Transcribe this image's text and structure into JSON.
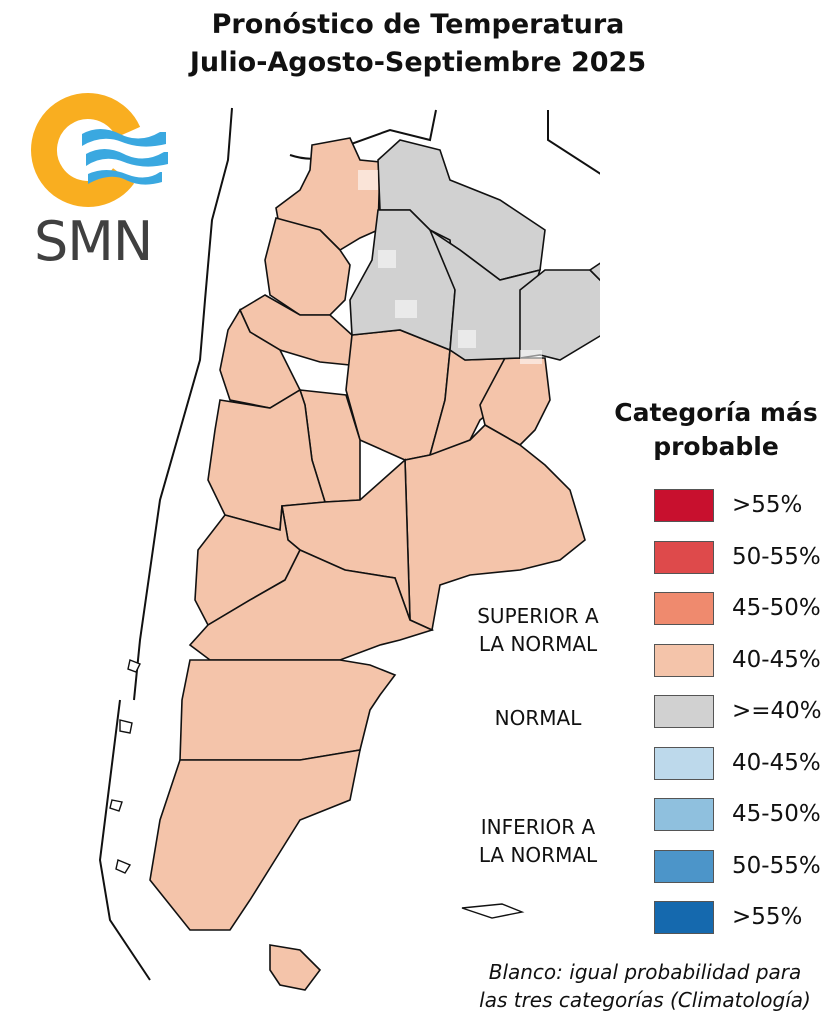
{
  "header": {
    "title_line1": "Pronóstico de Temperatura",
    "title_line2": "Julio-Agosto-Septiembre 2025"
  },
  "logo": {
    "text": "SMN",
    "sun_color": "#F9AE20",
    "wave_color": "#3AA8E0"
  },
  "legend": {
    "title_line1": "Categoría más",
    "title_line2": "probable",
    "groups": {
      "superior_line1": "SUPERIOR A",
      "superior_line2": "LA NORMAL",
      "normal": "NORMAL",
      "inferior_line1": "INFERIOR A",
      "inferior_line2": "LA NORMAL"
    },
    "items": [
      {
        "label": ">55%",
        "color": "#C8102E"
      },
      {
        "label": "50-55%",
        "color": "#DE4A4B"
      },
      {
        "label": "45-50%",
        "color": "#EF8A6E"
      },
      {
        "label": "40-45%",
        "color": "#F4C4AA"
      },
      {
        "label": ">=40%",
        "color": "#D1D1D1"
      },
      {
        "label": "40-45%",
        "color": "#BDD9EB"
      },
      {
        "label": "45-50%",
        "color": "#8FC0DE"
      },
      {
        "label": "50-55%",
        "color": "#4C95C9"
      },
      {
        "label": ">55%",
        "color": "#1569AE"
      }
    ]
  },
  "map_colors": {
    "superior_40_45": "#F4C4AA",
    "normal": "#D1D1D1",
    "blanco": "#FFFFFF",
    "border": "#111111"
  },
  "note": {
    "line1": "Blanco: igual probabilidad para",
    "line2": "las tres categorías (Climatología)"
  }
}
